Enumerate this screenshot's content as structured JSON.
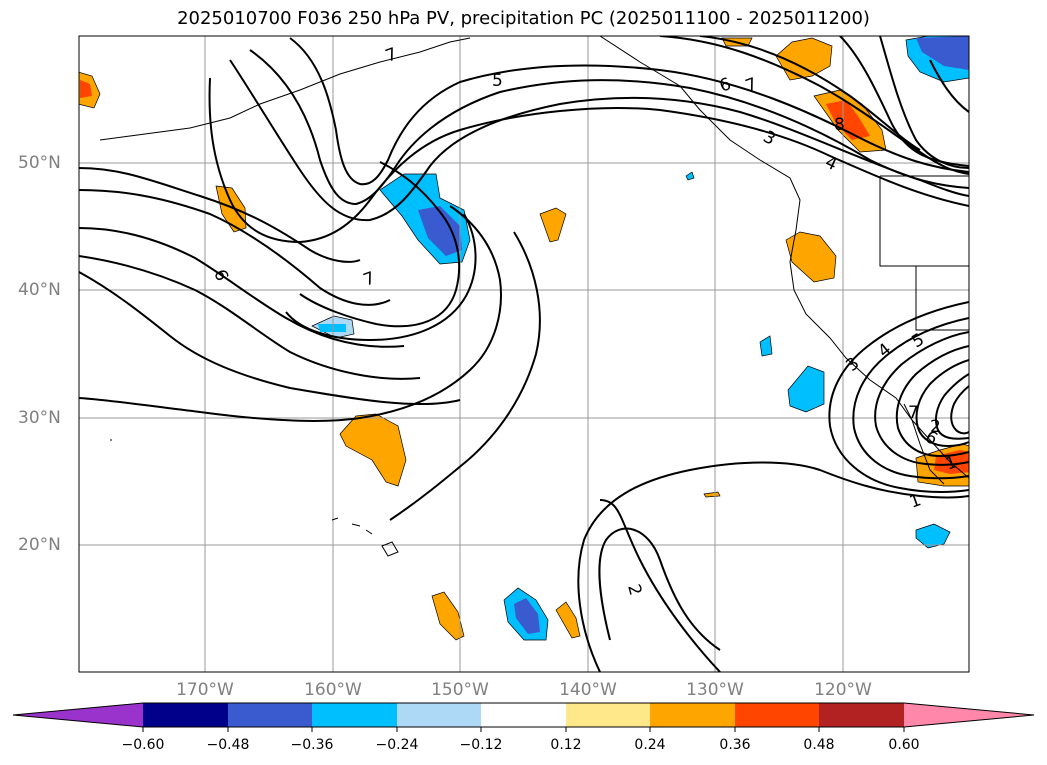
{
  "title": "2025010700 F036 250 hPa PV, precipitation PC (2025011100 - 2025011200)",
  "map": {
    "lat_labels": [
      "50°N",
      "40°N",
      "30°N",
      "20°N"
    ],
    "lon_labels": [
      "170°W",
      "160°W",
      "150°W",
      "140°W",
      "130°W",
      "120°W"
    ],
    "contour_labels": [
      "5",
      "6",
      "7",
      "6",
      "7",
      "1",
      "2",
      "3",
      "4",
      "7",
      "3",
      "4",
      "5",
      "6",
      "1",
      "2",
      "8",
      "7"
    ]
  },
  "colorbar": {
    "tick_labels": [
      "−0.60",
      "−0.48",
      "−0.36",
      "−0.24",
      "−0.12",
      "0.12",
      "0.24",
      "0.36",
      "0.48",
      "0.60"
    ],
    "colors": [
      "#9933cc",
      "#00008b",
      "#3a5bd0",
      "#00bfff",
      "#add8f6",
      "#ffffff",
      "#ffe88a",
      "#ffa500",
      "#ff4500",
      "#b22222",
      "#ff88aa"
    ]
  }
}
